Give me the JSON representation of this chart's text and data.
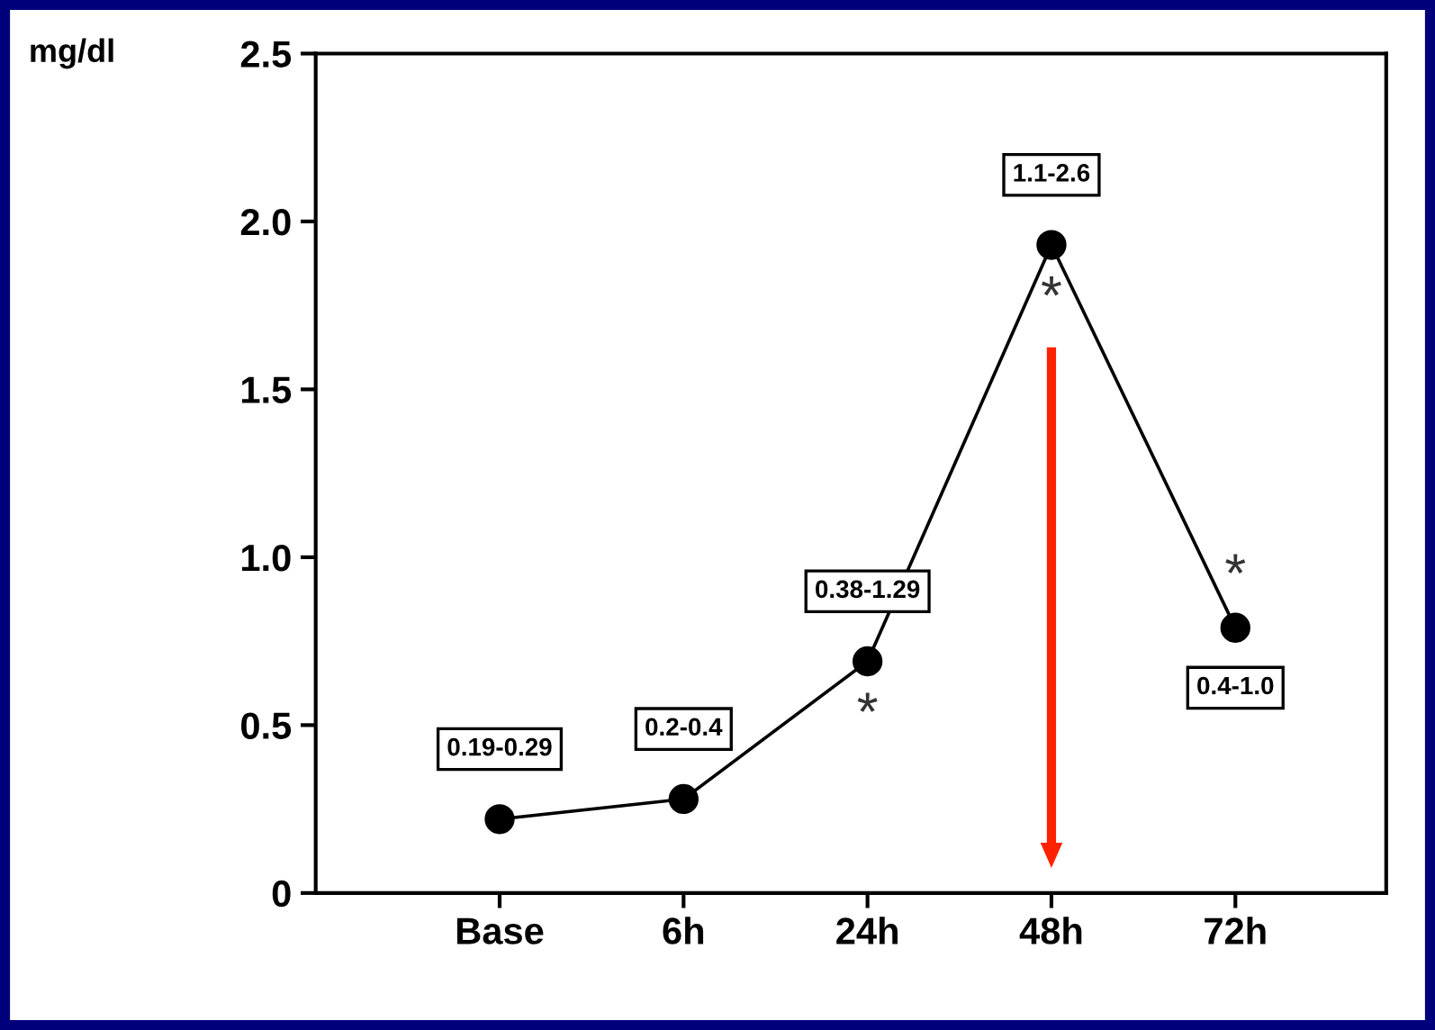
{
  "chart_data": {
    "type": "line",
    "ylabel": "mg/dl",
    "categories": [
      "Base",
      "6h",
      "24h",
      "48h",
      "72h"
    ],
    "series": [
      {
        "color": "#000000",
        "values": [
          0.22,
          0.28,
          0.69,
          1.93,
          0.79
        ],
        "value_labels": [
          "0.19-0.29",
          "0.2-0.4",
          "0.38-1.29",
          "1.1-2.6",
          "0.4-1.0"
        ]
      }
    ],
    "ylim": [
      0,
      2.5
    ],
    "yticks": [
      0,
      {
        "value": 0.5,
        "label": "0.5"
      },
      {
        "value": 1.0,
        "label": "1.0"
      },
      {
        "value": 1.5,
        "label": "1.5"
      },
      {
        "value": 2.0,
        "label": "2.0"
      },
      {
        "value": 2.5,
        "label": "2.5"
      }
    ],
    "annotations": [
      "*",
      "*",
      "*"
    ],
    "marker": "circle",
    "line_style": "solid",
    "grid": false,
    "legend": false
  }
}
